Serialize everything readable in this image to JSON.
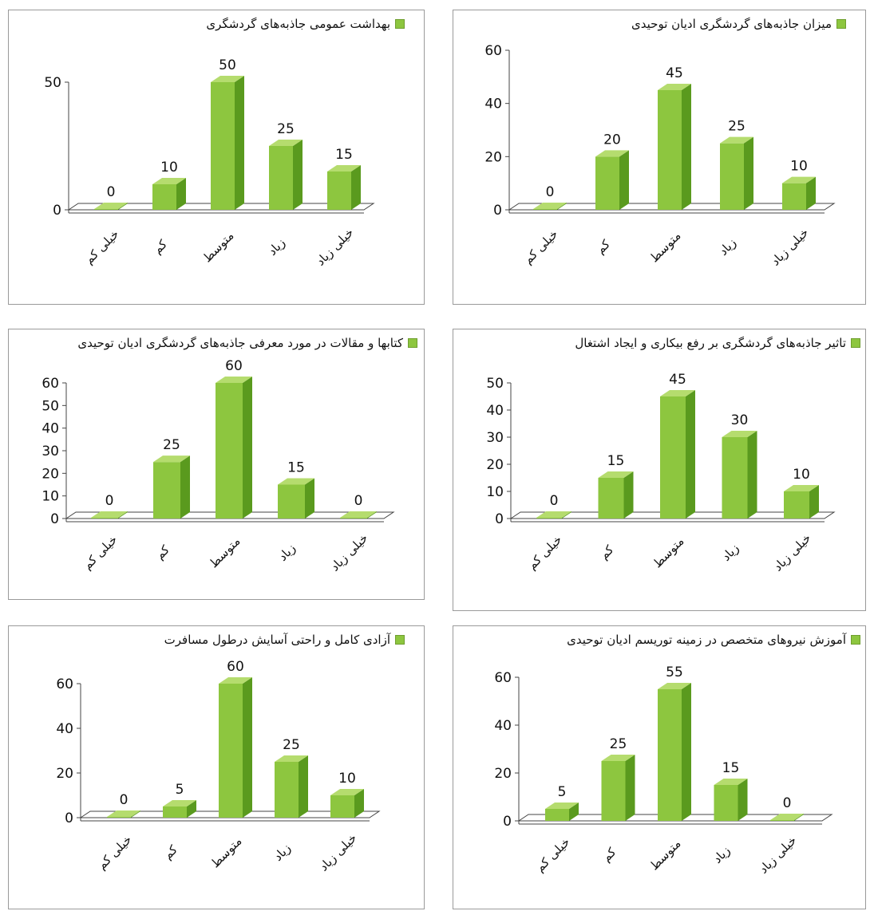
{
  "colors": {
    "bar_front": "#8dc63f",
    "bar_side": "#5a9a1e",
    "bar_top": "#b5dc6e",
    "axis": "#444444"
  },
  "chart_data": [
    {
      "type": "bar",
      "title": "بهداشت عمومی جاذبه‌های گردشگری",
      "categories": [
        "خیلی کم",
        "کم",
        "متوسط",
        "زیاد",
        "خیلی زیاد"
      ],
      "series": [
        {
          "name": "بهداشت عمومی جاذبه‌های گردشگری",
          "values": [
            0,
            10,
            50,
            25,
            15
          ]
        }
      ],
      "yticks": [
        0,
        50
      ],
      "ylim": [
        0,
        50
      ],
      "legend": "top"
    },
    {
      "type": "bar",
      "title": "میزان جاذبه‌های گردشگری ادیان توحیدی",
      "categories": [
        "خیلی کم",
        "کم",
        "متوسط",
        "زیاد",
        "خیلی زیاد"
      ],
      "series": [
        {
          "name": "میزان جاذبه‌های گردشگری ادیان توحیدی",
          "values": [
            0,
            20,
            45,
            25,
            10
          ]
        }
      ],
      "yticks": [
        0,
        20,
        40,
        60
      ],
      "ylim": [
        0,
        60
      ],
      "legend": "top"
    },
    {
      "type": "bar",
      "title": "کتابها و مقالات در مورد معرفی جاذبه‌های گردشگری ادیان توحیدی",
      "categories": [
        "خیلی کم",
        "کم",
        "متوسط",
        "زیاد",
        "خیلی زیاد"
      ],
      "series": [
        {
          "name": "کتابها و مقالات در مورد معرفی جاذبه‌های گردشگری ادیان توحیدی",
          "values": [
            0,
            25,
            60,
            15,
            0
          ]
        }
      ],
      "yticks": [
        0,
        10,
        20,
        30,
        40,
        50,
        60
      ],
      "ylim": [
        0,
        60
      ],
      "legend": "top"
    },
    {
      "type": "bar",
      "title": "تاثیر جاذبه‌های گردشگری بر رفع بیکاری و ایجاد اشتغال",
      "categories": [
        "خیلی کم",
        "کم",
        "متوسط",
        "زیاد",
        "خیلی زیاد"
      ],
      "series": [
        {
          "name": "تاثیر جاذبه‌های گردشگری بر رفع بیکاری و ایجاد اشتغال",
          "values": [
            0,
            15,
            45,
            30,
            10
          ]
        }
      ],
      "yticks": [
        0,
        10,
        20,
        30,
        40,
        50
      ],
      "ylim": [
        0,
        50
      ],
      "legend": "top"
    },
    {
      "type": "bar",
      "title": "آزادی کامل و راحتی آسایش درطول مسافرت",
      "categories": [
        "خیلی کم",
        "کم",
        "متوسط",
        "زیاد",
        "خیلی زیاد"
      ],
      "series": [
        {
          "name": "آزادی کامل و راحتی آسایش درطول مسافرت",
          "values": [
            0,
            5,
            60,
            25,
            10
          ]
        }
      ],
      "yticks": [
        0,
        20,
        40,
        60
      ],
      "ylim": [
        0,
        60
      ],
      "legend": "top"
    },
    {
      "type": "bar",
      "title": "آموزش نیروهای متخصص در زمینه توریسم ادیان توحیدی",
      "categories": [
        "خیلی کم",
        "کم",
        "متوسط",
        "زیاد",
        "خیلی زیاد"
      ],
      "series": [
        {
          "name": "آموزش نیروهای متخصص در زمینه توریسم ادیان توحیدی",
          "values": [
            5,
            25,
            55,
            15,
            0
          ]
        }
      ],
      "yticks": [
        0,
        20,
        40,
        60
      ],
      "ylim": [
        0,
        60
      ],
      "legend": "top"
    }
  ]
}
